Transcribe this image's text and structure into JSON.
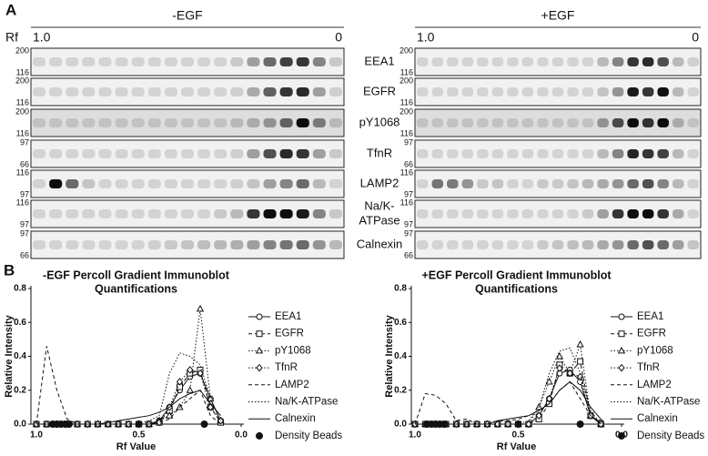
{
  "panel_a": {
    "label": "A",
    "rf_label": "Rf",
    "groups": [
      {
        "title": "-EGF",
        "start": "1.0",
        "end": "0"
      },
      {
        "title": "+EGF",
        "start": "1.0",
        "end": "0"
      }
    ],
    "rows": [
      {
        "label": "EEA1",
        "markers": [
          200,
          116
        ]
      },
      {
        "label": "EGFR",
        "markers": [
          200,
          116
        ]
      },
      {
        "label": "pY1068",
        "markers": [
          200,
          116
        ]
      },
      {
        "label": "TfnR",
        "markers": [
          97,
          66
        ]
      },
      {
        "label": "LAMP2",
        "markers": [
          116,
          97
        ]
      },
      {
        "label": [
          "Na/K-",
          "ATPase"
        ],
        "markers": [
          116,
          97
        ]
      },
      {
        "label": "Calnexin",
        "markers": [
          97,
          66
        ]
      }
    ]
  },
  "panel_b": {
    "label": "B"
  },
  "chart_data": [
    {
      "type": "line",
      "title": [
        "-EGF Percoll Gradient Immunoblot",
        "Quantifications"
      ],
      "x_label": "Rf Value",
      "y_label": "Relative Intensity",
      "x": [
        1.0,
        0.95,
        0.9,
        0.85,
        0.8,
        0.75,
        0.7,
        0.65,
        0.6,
        0.55,
        0.5,
        0.45,
        0.4,
        0.35,
        0.3,
        0.25,
        0.2,
        0.15,
        0.1
      ],
      "xlim": [
        1.0,
        0.0
      ],
      "xticks": [
        {
          "value": 1,
          "label": "1.0"
        },
        0.5,
        {
          "value": 0,
          "label": "0.0"
        }
      ],
      "ylim": [
        0,
        0.8
      ],
      "yticks": [
        {
          "value": 0,
          "label": "0.0"
        },
        0.2,
        0.4,
        0.6,
        0.8
      ],
      "series": [
        {
          "name": "EEA1",
          "color": "#111",
          "marker": "circle",
          "dash": "solid",
          "values": [
            0,
            0,
            0,
            0,
            0,
            0,
            0,
            0,
            0,
            0,
            0,
            0,
            0.02,
            0.1,
            0.2,
            0.28,
            0.3,
            0.15,
            0.02
          ]
        },
        {
          "name": "EGFR",
          "color": "#111",
          "marker": "square",
          "dash": "dashed",
          "values": [
            0,
            0,
            0,
            0,
            0,
            0,
            0,
            0,
            0,
            0,
            0,
            0,
            0.01,
            0.08,
            0.22,
            0.3,
            0.32,
            0.1,
            0.01
          ]
        },
        {
          "name": "pY1068",
          "color": "#111",
          "marker": "triangle",
          "dash": "dotted",
          "values": [
            0,
            0,
            0,
            0,
            0,
            0,
            0,
            0,
            0,
            0,
            0,
            0,
            0.02,
            0.05,
            0.1,
            0.2,
            0.68,
            0.15,
            0.02
          ]
        },
        {
          "name": "TfnR",
          "color": "#111",
          "marker": "diamond",
          "dash": "dotted",
          "values": [
            0,
            0,
            0,
            0,
            0,
            0,
            0,
            0,
            0,
            0,
            0,
            0,
            0.01,
            0.1,
            0.25,
            0.32,
            0.3,
            0.1,
            0.02
          ]
        },
        {
          "name": "LAMP2",
          "color": "#111",
          "marker": "none",
          "dash": "dashed",
          "values": [
            0,
            0.46,
            0.2,
            0.03,
            0,
            0,
            0,
            0,
            0,
            0,
            0,
            0,
            0.01,
            0.03,
            0.1,
            0.15,
            0.2,
            0.05,
            0
          ]
        },
        {
          "name": "Na/K-ATPase",
          "color": "#111",
          "marker": "none",
          "dash": "dotted",
          "values": [
            0,
            0,
            0,
            0,
            0,
            0,
            0,
            0,
            0,
            0,
            0,
            0.02,
            0.05,
            0.3,
            0.42,
            0.4,
            0.35,
            0.15,
            0.02
          ]
        },
        {
          "name": "Calnexin",
          "color": "#111",
          "marker": "none",
          "dash": "solid",
          "values": [
            0,
            0,
            0,
            0,
            0,
            0,
            0,
            0.01,
            0.02,
            0.03,
            0.04,
            0.05,
            0.07,
            0.1,
            0.15,
            0.18,
            0.2,
            0.12,
            0.05
          ]
        },
        {
          "name": "Density Beads",
          "color": "#111",
          "marker": "dot",
          "dash": "none",
          "x": [
            0.92,
            0.9,
            0.88,
            0.86,
            0.84,
            0.5,
            0.18
          ],
          "values": [
            0,
            0,
            0,
            0,
            0,
            0,
            0
          ]
        }
      ]
    },
    {
      "type": "line",
      "title": [
        "+EGF Percoll Gradient Immunoblot",
        "Quantifications"
      ],
      "x_label": "Rf Value",
      "y_label": "Relative Intensity",
      "x": [
        1.0,
        0.95,
        0.9,
        0.85,
        0.8,
        0.75,
        0.7,
        0.65,
        0.6,
        0.55,
        0.5,
        0.45,
        0.4,
        0.35,
        0.3,
        0.25,
        0.2,
        0.15,
        0.1
      ],
      "xlim": [
        1.0,
        0.0
      ],
      "xticks": [
        {
          "value": 1,
          "label": "1.0"
        },
        0.5,
        {
          "value": 0,
          "label": "0.0"
        }
      ],
      "ylim": [
        0,
        0.8
      ],
      "yticks": [
        {
          "value": 0,
          "label": "0.0"
        },
        0.2,
        0.4,
        0.6,
        0.8
      ],
      "series": [
        {
          "name": "EEA1",
          "color": "#111",
          "marker": "circle",
          "dash": "solid",
          "values": [
            0,
            0,
            0,
            0,
            0,
            0,
            0,
            0,
            0,
            0,
            0,
            0,
            0.05,
            0.15,
            0.3,
            0.32,
            0.25,
            0.05,
            0.01
          ]
        },
        {
          "name": "EGFR",
          "color": "#111",
          "marker": "square",
          "dash": "dashed",
          "values": [
            0,
            0,
            0,
            0,
            0,
            0,
            0,
            0,
            0,
            0,
            0,
            0,
            0.03,
            0.12,
            0.35,
            0.3,
            0.37,
            0.05,
            0
          ]
        },
        {
          "name": "pY1068",
          "color": "#111",
          "marker": "triangle",
          "dash": "dotted",
          "values": [
            0,
            0,
            0,
            0,
            0,
            0,
            0,
            0,
            0,
            0,
            0,
            0,
            0.1,
            0.25,
            0.4,
            0.3,
            0.47,
            0.05,
            0
          ]
        },
        {
          "name": "TfnR",
          "color": "#111",
          "marker": "diamond",
          "dash": "dotted",
          "values": [
            0,
            0,
            0,
            0,
            0,
            0,
            0,
            0,
            0,
            0,
            0,
            0,
            0.05,
            0.15,
            0.33,
            0.3,
            0.28,
            0.05,
            0
          ]
        },
        {
          "name": "LAMP2",
          "color": "#111",
          "marker": "none",
          "dash": "dashed",
          "values": [
            0,
            0.18,
            0.17,
            0.12,
            0.02,
            0.03,
            0,
            0,
            0.02,
            0.02,
            0.03,
            0.05,
            0.08,
            0.12,
            0.2,
            0.25,
            0.15,
            0.05,
            0
          ]
        },
        {
          "name": "Na/K-ATPase",
          "color": "#111",
          "marker": "none",
          "dash": "dotted",
          "values": [
            0,
            0,
            0,
            0,
            0,
            0,
            0,
            0,
            0,
            0,
            0,
            0.02,
            0.1,
            0.3,
            0.43,
            0.45,
            0.3,
            0.08,
            0
          ]
        },
        {
          "name": "Calnexin",
          "color": "#111",
          "marker": "none",
          "dash": "solid",
          "values": [
            0,
            0,
            0,
            0,
            0,
            0,
            0,
            0,
            0.02,
            0.03,
            0.04,
            0.05,
            0.08,
            0.12,
            0.2,
            0.25,
            0.2,
            0.1,
            0.03
          ]
        },
        {
          "name": "Density Beads",
          "color": "#111",
          "marker": "dot",
          "dash": "none",
          "x": [
            0.94,
            0.92,
            0.9,
            0.88,
            0.86,
            0.5,
            0.2
          ],
          "values": [
            0,
            0,
            0,
            0,
            0,
            0,
            0
          ]
        }
      ]
    }
  ]
}
